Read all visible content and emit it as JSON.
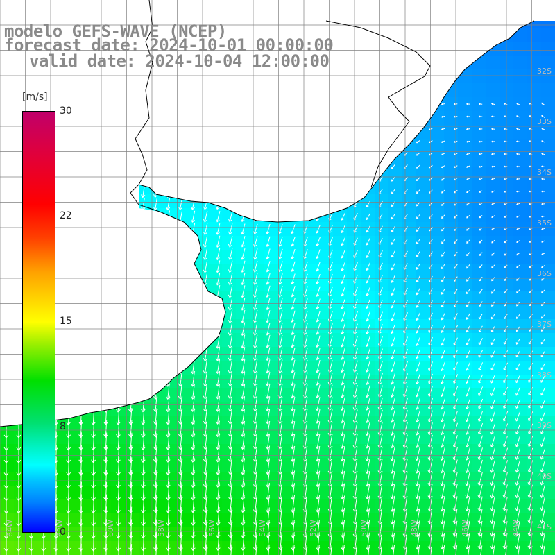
{
  "header": {
    "line1": "modelo GEFS-WAVE (NCEP)",
    "line2": "forecast date: 2024-10-01 00:00:00",
    "line3": "valid date: 2024-10-04 12:00:00"
  },
  "legend": {
    "unit": "[m/s]",
    "ticks": [
      "30",
      "22",
      "15",
      "8",
      "0"
    ],
    "range": [
      0,
      30
    ],
    "colors": [
      "#0000ff",
      "#00ffff",
      "#00e000",
      "#ffff00",
      "#ff0000",
      "#c0006a"
    ]
  },
  "map": {
    "latitude_labels": [
      "32S",
      "33S",
      "34S",
      "35S",
      "36S",
      "37S",
      "38S",
      "39S",
      "40S",
      "41S"
    ],
    "longitude_labels": [
      "64W",
      "62W",
      "60W",
      "58W",
      "56W",
      "54W",
      "52W",
      "50W",
      "48W",
      "46W",
      "44W"
    ],
    "land_color": "#ffffff",
    "grid_color": "#808080",
    "coast_color": "#000000",
    "arrow_color": "#ffffff",
    "wind_field": "northerly to north-easterly flow off the Rio de la Plata, strongest (about 12 m/s) in the south-west, weakest (below 4 m/s) near 35S 44W"
  }
}
